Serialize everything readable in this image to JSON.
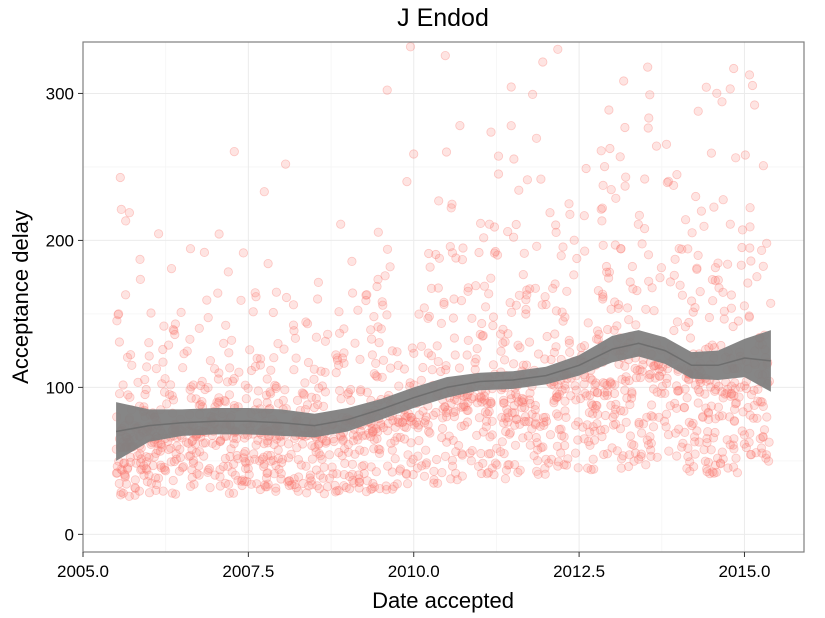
{
  "chart_data": {
    "type": "scatter",
    "title": "J Endod",
    "xlabel": "Date accepted",
    "ylabel": "Acceptance delay",
    "xlim": [
      2005.0,
      2015.9
    ],
    "ylim": [
      -12,
      335
    ],
    "x_ticks": [
      2005.0,
      2007.5,
      2010.0,
      2012.5,
      2015.0
    ],
    "x_tick_labels": [
      "2005.0",
      "2007.5",
      "2010.0",
      "2012.5",
      "2015.0"
    ],
    "y_ticks": [
      0,
      100,
      200,
      300
    ],
    "y_tick_labels": [
      "0",
      "100",
      "200",
      "300"
    ],
    "grid": true,
    "legend": "none",
    "point_color": "#f8766d",
    "smooth_color": "#7f7f7f",
    "x_range_of_points": [
      2005.5,
      2015.4
    ],
    "smooth": {
      "x": [
        2005.5,
        2006.0,
        2006.5,
        2007.0,
        2007.5,
        2008.0,
        2008.5,
        2009.0,
        2009.5,
        2010.0,
        2010.5,
        2011.0,
        2011.5,
        2012.0,
        2012.5,
        2013.0,
        2013.4,
        2013.8,
        2014.2,
        2014.6,
        2015.0,
        2015.4
      ],
      "y": [
        70,
        74,
        76,
        77,
        77,
        76,
        74,
        78,
        85,
        93,
        100,
        104,
        105,
        108,
        115,
        126,
        130,
        125,
        115,
        115,
        120,
        118
      ],
      "se_lower": [
        50,
        63,
        67,
        68,
        68,
        67,
        66,
        70,
        78,
        86,
        93,
        98,
        99,
        102,
        108,
        117,
        121,
        116,
        106,
        105,
        107,
        97
      ],
      "se_upper": [
        90,
        85,
        85,
        86,
        86,
        85,
        82,
        86,
        92,
        100,
        107,
        110,
        111,
        114,
        122,
        135,
        139,
        134,
        124,
        125,
        133,
        139
      ]
    }
  }
}
